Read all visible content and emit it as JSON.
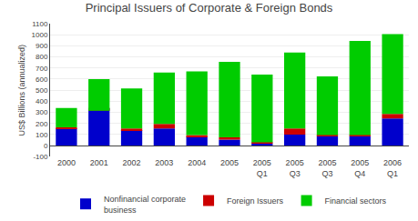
{
  "chart_data": {
    "type": "bar",
    "title": "Principal Issuers of Corporate & Foreign Bonds",
    "ylabel": "US$ Billions (annualized)",
    "categories": [
      "2000",
      "2001",
      "2002",
      "2003",
      "2004",
      "2005",
      "2005\nQ1",
      "2005\nQ3",
      "2005\nQ3",
      "2005\nQ4",
      "2006\nQ1"
    ],
    "series": [
      {
        "name": "Nonfinancial corporate\nbusiness",
        "color": "#0000CC",
        "values": [
          155,
          340,
          140,
          155,
          80,
          55,
          20,
          100,
          85,
          85,
          245
        ]
      },
      {
        "name": "Foreign Issuers",
        "color": "#CC0000",
        "values": [
          10,
          -25,
          15,
          40,
          15,
          20,
          10,
          55,
          10,
          10,
          40
        ]
      },
      {
        "name": "Financial sectors",
        "color": "#00CC00",
        "values": [
          175,
          285,
          360,
          465,
          575,
          680,
          610,
          685,
          530,
          850,
          720
        ]
      }
    ],
    "stacked": true,
    "ylim": [
      -100,
      1100
    ],
    "yticks": [
      -100,
      0,
      100,
      200,
      300,
      400,
      500,
      600,
      700,
      800,
      900,
      1000,
      1100
    ],
    "grid": true,
    "legend": "bottom"
  }
}
